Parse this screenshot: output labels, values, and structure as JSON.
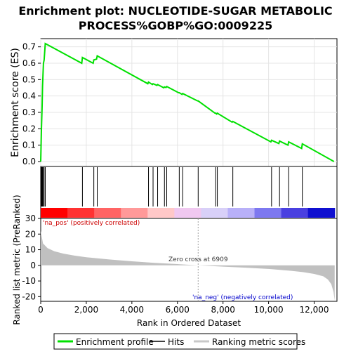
{
  "chart_data": {
    "type": "line",
    "title": "Enrichment plot: NUCLEOTIDE-SUGAR METABOLIC PROCESS%GOBP%GO:0009225",
    "title_lines": [
      "Enrichment plot: NUCLEOTIDE-SUGAR METABOLIC",
      "PROCESS%GOBP%GO:0009225"
    ],
    "xlabel": "Rank in Ordered Dataset",
    "xlim": [
      0,
      13000
    ],
    "x_ticks": [
      0,
      2000,
      4000,
      6000,
      8000,
      10000,
      12000
    ],
    "x_tick_labels": [
      "0",
      "2,000",
      "4,000",
      "6,000",
      "8,000",
      "10,000",
      "12,000"
    ],
    "n_genes": 12900,
    "es_panel": {
      "ylabel": "Enrichment score (ES)",
      "ylim": [
        -0.03,
        0.75
      ],
      "y_ticks": [
        0.0,
        0.1,
        0.2,
        0.3,
        0.4,
        0.5,
        0.6,
        0.7
      ],
      "y_tick_labels": [
        "0.0",
        "0.1",
        "0.2",
        "0.3",
        "0.4",
        "0.5",
        "0.6",
        "0.7"
      ],
      "grid": true,
      "series": [
        {
          "name": "Enrichment profile",
          "color": "#00e000",
          "x": [
            0,
            30,
            60,
            80,
            120,
            150,
            200,
            1800,
            1830,
            2300,
            2330,
            2450,
            2480,
            4700,
            4730,
            4900,
            4930,
            5100,
            5130,
            5400,
            5430,
            5500,
            5530,
            6050,
            6080,
            6200,
            6230,
            6880,
            6910,
            7650,
            7680,
            7720,
            7750,
            8400,
            8430,
            10100,
            10130,
            10450,
            10480,
            10850,
            10880,
            11450,
            11480,
            12870
          ],
          "y": [
            0.0,
            0.19,
            0.33,
            0.46,
            0.6,
            0.62,
            0.72,
            0.6,
            0.635,
            0.6,
            0.62,
            0.625,
            0.645,
            0.475,
            0.485,
            0.47,
            0.475,
            0.465,
            0.47,
            0.45,
            0.455,
            0.452,
            0.458,
            0.42,
            0.42,
            0.41,
            0.415,
            0.37,
            0.37,
            0.295,
            0.295,
            0.29,
            0.295,
            0.24,
            0.245,
            0.12,
            0.13,
            0.11,
            0.125,
            0.1,
            0.12,
            0.08,
            0.108,
            0.0
          ]
        }
      ]
    },
    "hits_panel": {
      "series_name": "Hits",
      "hit_positions": [
        30,
        60,
        80,
        120,
        150,
        200,
        1830,
        2330,
        2480,
        4730,
        4930,
        5130,
        5430,
        5530,
        6080,
        6230,
        6910,
        7680,
        7750,
        8430,
        10130,
        10480,
        10880,
        11480
      ]
    },
    "color_bar": {
      "stops": [
        "#ff0000",
        "#ff3232",
        "#ff6464",
        "#ff9999",
        "#ffc8c8",
        "#f0c8f0",
        "#d8d0f8",
        "#b8b0f8",
        "#7d78f0",
        "#4a40e0",
        "#1010d0"
      ]
    },
    "ranked_panel": {
      "ylabel": "Ranked list metric (PreRanked)",
      "ylim": [
        -23,
        30
      ],
      "y_ticks": [
        -20,
        -10,
        0,
        10,
        20,
        30
      ],
      "y_tick_labels": [
        "-20",
        "-10",
        "0",
        "10",
        "20",
        "30"
      ],
      "series_name": "Ranking metric scores",
      "x": [
        0,
        100,
        300,
        600,
        1000,
        1500,
        2000,
        3000,
        4000,
        5000,
        6000,
        6909,
        8000,
        9000,
        10000,
        11000,
        11500,
        12000,
        12400,
        12600,
        12750,
        12850,
        12900
      ],
      "values": [
        22,
        14,
        11,
        9,
        7.5,
        6.2,
        5.2,
        3.8,
        2.6,
        1.6,
        0.8,
        0,
        -0.8,
        -1.5,
        -2.3,
        -3.5,
        -4.3,
        -5.5,
        -7.0,
        -9.0,
        -12.0,
        -17.0,
        -22.5
      ],
      "zero_cross_label": "Zero cross at 6909",
      "zero_cross": 6909,
      "pos_label": "'na_pos' (positively correlated)",
      "neg_label": "'na_neg' (negatively correlated)"
    },
    "legend": {
      "placement": "bottom",
      "entries": [
        {
          "label": "Enrichment profile",
          "color": "#00e000"
        },
        {
          "label": "Hits",
          "color": "#000000"
        },
        {
          "label": "Ranking metric scores",
          "color": "#c8c8c8"
        }
      ]
    }
  }
}
